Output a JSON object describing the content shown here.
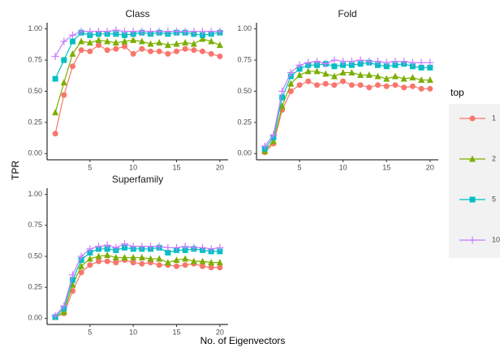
{
  "y_label": "TPR",
  "x_label": "No. of Eigenvectors",
  "legend_title": "top",
  "chart_data": [
    {
      "type": "line",
      "title": "Class",
      "x": [
        1,
        2,
        3,
        4,
        5,
        6,
        7,
        8,
        9,
        10,
        11,
        12,
        13,
        14,
        15,
        16,
        17,
        18,
        19,
        20
      ],
      "xlim": [
        0.05,
        20.95
      ],
      "xticks": [
        5,
        10,
        15,
        20
      ],
      "ylim": [
        -0.05,
        1.05
      ],
      "yticks": [
        {
          "value": 0,
          "label": "0.00"
        },
        {
          "value": 0.25,
          "label": "0.25"
        },
        {
          "value": 0.5,
          "label": "0.50"
        },
        {
          "value": 0.75,
          "label": "0.75"
        },
        {
          "value": 1,
          "label": "1.00"
        }
      ],
      "grid": false,
      "series": [
        {
          "name": "1",
          "color": "#F8766D",
          "marker": "circle",
          "values": [
            0.16,
            0.47,
            0.7,
            0.83,
            0.82,
            0.87,
            0.83,
            0.84,
            0.86,
            0.8,
            0.84,
            0.82,
            0.82,
            0.8,
            0.82,
            0.84,
            0.83,
            0.82,
            0.8,
            0.78
          ]
        },
        {
          "name": "2",
          "color": "#7CAE00",
          "marker": "triangle",
          "values": [
            0.33,
            0.57,
            0.8,
            0.9,
            0.89,
            0.91,
            0.9,
            0.89,
            0.9,
            0.91,
            0.9,
            0.88,
            0.89,
            0.87,
            0.88,
            0.89,
            0.88,
            0.92,
            0.9,
            0.87
          ]
        },
        {
          "name": "5",
          "color": "#00BFC4",
          "marker": "square",
          "values": [
            0.6,
            0.75,
            0.9,
            0.97,
            0.95,
            0.96,
            0.96,
            0.96,
            0.95,
            0.96,
            0.97,
            0.96,
            0.97,
            0.96,
            0.97,
            0.97,
            0.96,
            0.95,
            0.96,
            0.97
          ]
        },
        {
          "name": "10",
          "color": "#C77CFF",
          "marker": "plus",
          "values": [
            0.78,
            0.9,
            0.95,
            0.98,
            0.98,
            0.98,
            0.98,
            0.99,
            0.98,
            0.98,
            0.98,
            0.98,
            0.98,
            0.98,
            0.98,
            0.98,
            0.98,
            0.98,
            0.98,
            0.98
          ]
        }
      ]
    },
    {
      "type": "line",
      "title": "Fold",
      "x": [
        1,
        2,
        3,
        4,
        5,
        6,
        7,
        8,
        9,
        10,
        11,
        12,
        13,
        14,
        15,
        16,
        17,
        18,
        19,
        20
      ],
      "xlim": [
        0.05,
        20.95
      ],
      "xticks": [
        5,
        10,
        15,
        20
      ],
      "ylim": [
        -0.05,
        1.05
      ],
      "yticks": [
        {
          "value": 0,
          "label": "0.00"
        },
        {
          "value": 0.25,
          "label": "0.25"
        },
        {
          "value": 0.5,
          "label": "0.50"
        },
        {
          "value": 0.75,
          "label": "0.75"
        },
        {
          "value": 1,
          "label": "1.00"
        }
      ],
      "grid": false,
      "series": [
        {
          "name": "1",
          "color": "#F8766D",
          "marker": "circle",
          "values": [
            0.01,
            0.08,
            0.35,
            0.5,
            0.55,
            0.58,
            0.55,
            0.56,
            0.55,
            0.58,
            0.55,
            0.55,
            0.53,
            0.55,
            0.54,
            0.55,
            0.53,
            0.54,
            0.52,
            0.52
          ]
        },
        {
          "name": "2",
          "color": "#7CAE00",
          "marker": "triangle",
          "values": [
            0.02,
            0.1,
            0.38,
            0.56,
            0.63,
            0.66,
            0.66,
            0.64,
            0.62,
            0.65,
            0.65,
            0.63,
            0.63,
            0.62,
            0.6,
            0.62,
            0.6,
            0.61,
            0.59,
            0.59
          ]
        },
        {
          "name": "5",
          "color": "#00BFC4",
          "marker": "square",
          "values": [
            0.04,
            0.13,
            0.45,
            0.62,
            0.68,
            0.71,
            0.71,
            0.72,
            0.7,
            0.71,
            0.71,
            0.72,
            0.73,
            0.71,
            0.7,
            0.71,
            0.72,
            0.7,
            0.69,
            0.69
          ]
        },
        {
          "name": "10",
          "color": "#C77CFF",
          "marker": "plus",
          "values": [
            0.06,
            0.15,
            0.5,
            0.65,
            0.71,
            0.73,
            0.74,
            0.72,
            0.75,
            0.74,
            0.74,
            0.75,
            0.74,
            0.74,
            0.73,
            0.74,
            0.74,
            0.73,
            0.73,
            0.73
          ]
        }
      ]
    },
    {
      "type": "line",
      "title": "Superfamily",
      "x": [
        1,
        2,
        3,
        4,
        5,
        6,
        7,
        8,
        9,
        10,
        11,
        12,
        13,
        14,
        15,
        16,
        17,
        18,
        19,
        20
      ],
      "xlim": [
        0.05,
        20.95
      ],
      "xticks": [
        5,
        10,
        15,
        20
      ],
      "ylim": [
        -0.05,
        1.05
      ],
      "yticks": [
        {
          "value": 0,
          "label": "0.00"
        },
        {
          "value": 0.25,
          "label": "0.25"
        },
        {
          "value": 0.5,
          "label": "0.50"
        },
        {
          "value": 0.75,
          "label": "0.75"
        },
        {
          "value": 1,
          "label": "1.00"
        }
      ],
      "grid": false,
      "series": [
        {
          "name": "1",
          "color": "#F8766D",
          "marker": "circle",
          "values": [
            0.01,
            0.04,
            0.22,
            0.37,
            0.43,
            0.46,
            0.46,
            0.45,
            0.47,
            0.45,
            0.44,
            0.45,
            0.43,
            0.43,
            0.42,
            0.43,
            0.44,
            0.42,
            0.41,
            0.41
          ]
        },
        {
          "name": "2",
          "color": "#7CAE00",
          "marker": "triangle",
          "values": [
            0.01,
            0.05,
            0.27,
            0.42,
            0.48,
            0.5,
            0.51,
            0.49,
            0.49,
            0.49,
            0.49,
            0.48,
            0.48,
            0.45,
            0.47,
            0.48,
            0.46,
            0.46,
            0.45,
            0.45
          ]
        },
        {
          "name": "5",
          "color": "#00BFC4",
          "marker": "square",
          "values": [
            0.01,
            0.08,
            0.31,
            0.47,
            0.53,
            0.56,
            0.56,
            0.55,
            0.57,
            0.56,
            0.56,
            0.56,
            0.57,
            0.53,
            0.55,
            0.55,
            0.56,
            0.55,
            0.54,
            0.54
          ]
        },
        {
          "name": "10",
          "color": "#C77CFF",
          "marker": "plus",
          "values": [
            0.02,
            0.1,
            0.35,
            0.5,
            0.56,
            0.58,
            0.59,
            0.57,
            0.6,
            0.58,
            0.58,
            0.58,
            0.58,
            0.57,
            0.57,
            0.58,
            0.57,
            0.57,
            0.56,
            0.57
          ]
        }
      ]
    }
  ]
}
